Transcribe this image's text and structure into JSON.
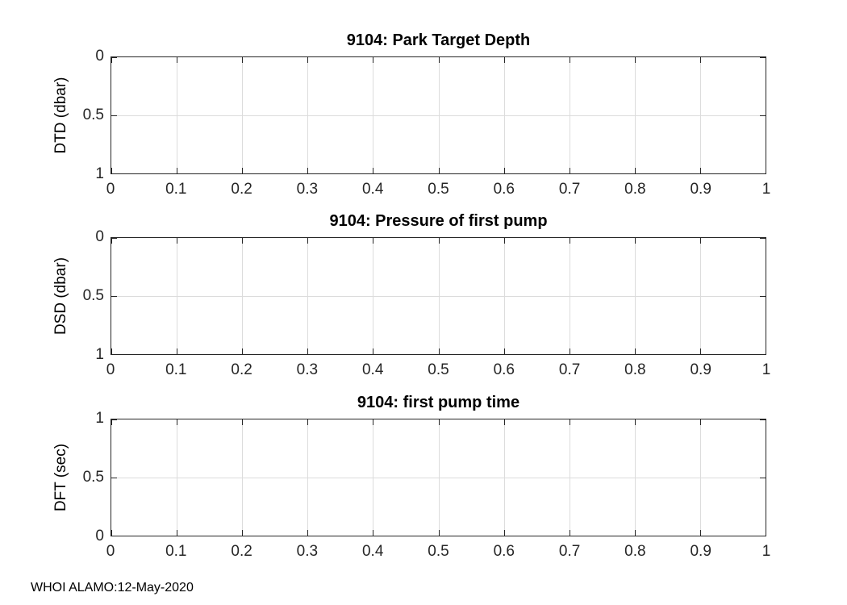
{
  "figure": {
    "annotation": "WHOI ALAMO:12-May-2020",
    "background_color": "#ffffff",
    "axis_color": "#262626",
    "grid_color": "#dcdcdc",
    "text_color": "#000000"
  },
  "chart_data": [
    {
      "type": "line",
      "title": "9104: Park Target Depth",
      "xlabel": "",
      "ylabel": "DTD (dbar)",
      "xlim": [
        0,
        1
      ],
      "ylim": [
        0,
        1
      ],
      "y_axis_direction": "reversed",
      "grid": true,
      "legend": "none",
      "x_ticks": [
        "0",
        "0.1",
        "0.2",
        "0.3",
        "0.4",
        "0.5",
        "0.6",
        "0.7",
        "0.8",
        "0.9",
        "1"
      ],
      "y_ticks": [
        "0",
        "0.5",
        "1"
      ],
      "series": []
    },
    {
      "type": "line",
      "title": "9104: Pressure of first pump",
      "xlabel": "",
      "ylabel": "DSD (dbar)",
      "xlim": [
        0,
        1
      ],
      "ylim": [
        0,
        1
      ],
      "y_axis_direction": "reversed",
      "grid": true,
      "legend": "none",
      "x_ticks": [
        "0",
        "0.1",
        "0.2",
        "0.3",
        "0.4",
        "0.5",
        "0.6",
        "0.7",
        "0.8",
        "0.9",
        "1"
      ],
      "y_ticks": [
        "0",
        "0.5",
        "1"
      ],
      "series": []
    },
    {
      "type": "line",
      "title": "9104: first pump time",
      "xlabel": "",
      "ylabel": "DFT (sec)",
      "xlim": [
        0,
        1
      ],
      "ylim": [
        0,
        1
      ],
      "y_axis_direction": "normal",
      "grid": true,
      "legend": "none",
      "x_ticks": [
        "0",
        "0.1",
        "0.2",
        "0.3",
        "0.4",
        "0.5",
        "0.6",
        "0.7",
        "0.8",
        "0.9",
        "1"
      ],
      "y_ticks": [
        "1",
        "0.5",
        "0"
      ],
      "series": []
    }
  ]
}
